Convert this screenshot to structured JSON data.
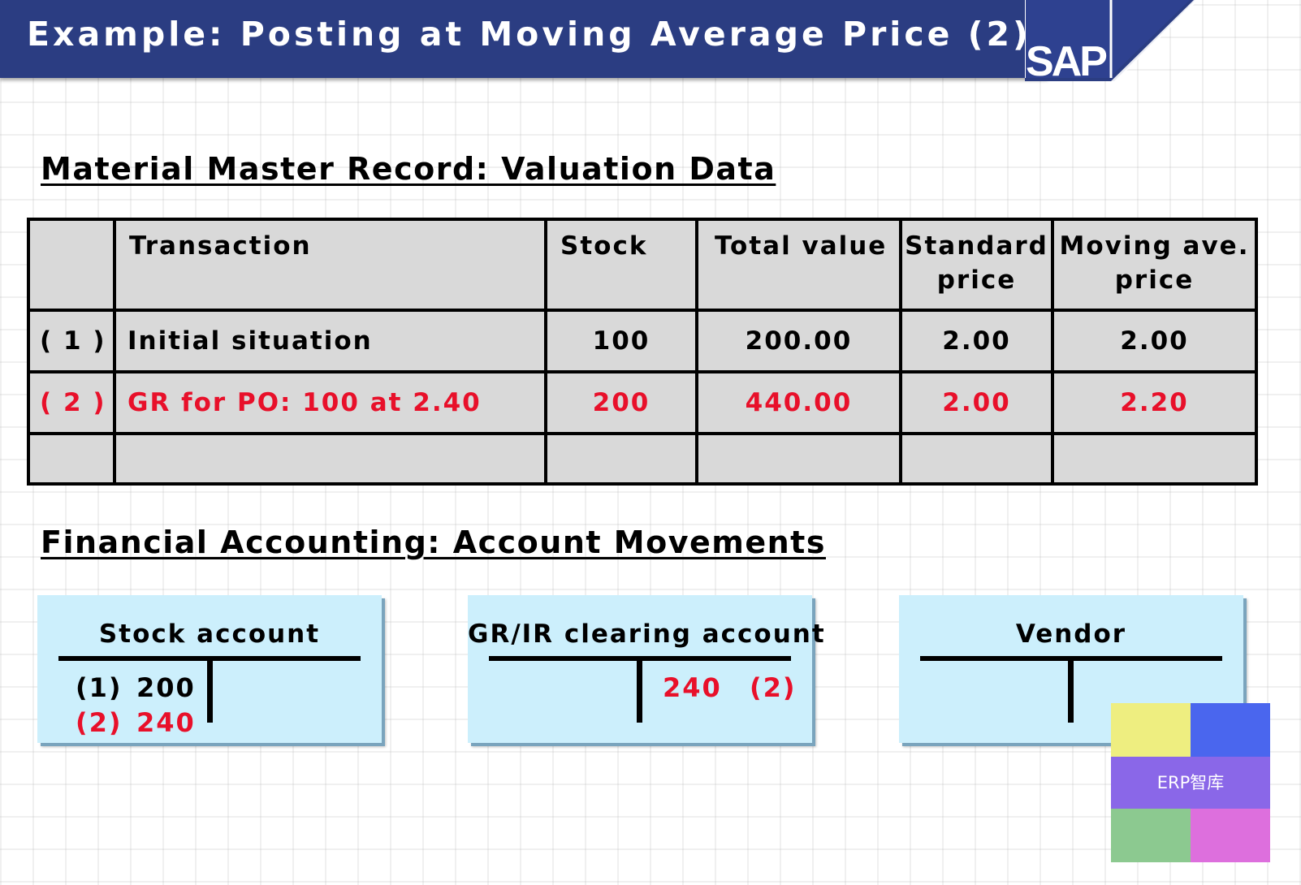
{
  "header": {
    "title": "Example: Posting at Moving Average Price (2)",
    "logo_text": "SAP",
    "background_color": "#2b3d82"
  },
  "valuation_section": {
    "title": "Material Master Record: Valuation Data",
    "columns": [
      "",
      "Transaction",
      "Stock",
      "Total value",
      "Standard price",
      "Moving ave. price"
    ],
    "rows": [
      {
        "num": "( 1 )",
        "transaction": "Initial situation",
        "stock": "100",
        "total_value": "200.00",
        "standard_price": "2.00",
        "moving_avg_price": "2.00",
        "highlight": false
      },
      {
        "num": "( 2 )",
        "transaction": "GR for PO: 100 at 2.40",
        "stock": "200",
        "total_value": "440.00",
        "standard_price": "2.00",
        "moving_avg_price": "2.20",
        "highlight": true
      },
      {
        "num": "",
        "transaction": "",
        "stock": "",
        "total_value": "",
        "standard_price": "",
        "moving_avg_price": "",
        "highlight": false
      }
    ]
  },
  "accounting_section": {
    "title": "Financial Accounting: Account Movements",
    "accounts": [
      {
        "name": "Stock account",
        "debit": [
          {
            "ref": "(1)",
            "amount": "200",
            "highlight": false
          },
          {
            "ref": "(2)",
            "amount": "240",
            "highlight": true
          }
        ],
        "credit": []
      },
      {
        "name": "GR/IR clearing account",
        "debit": [],
        "credit": [
          {
            "amount": "240",
            "ref": "(2)",
            "highlight": true
          }
        ]
      },
      {
        "name": "Vendor",
        "debit": [],
        "credit": []
      }
    ]
  },
  "watermark": {
    "text": "ERP智库"
  },
  "colors": {
    "highlight": "#e8102a",
    "table_fill": "#d9d9d9",
    "account_fill": "#cceffc"
  }
}
